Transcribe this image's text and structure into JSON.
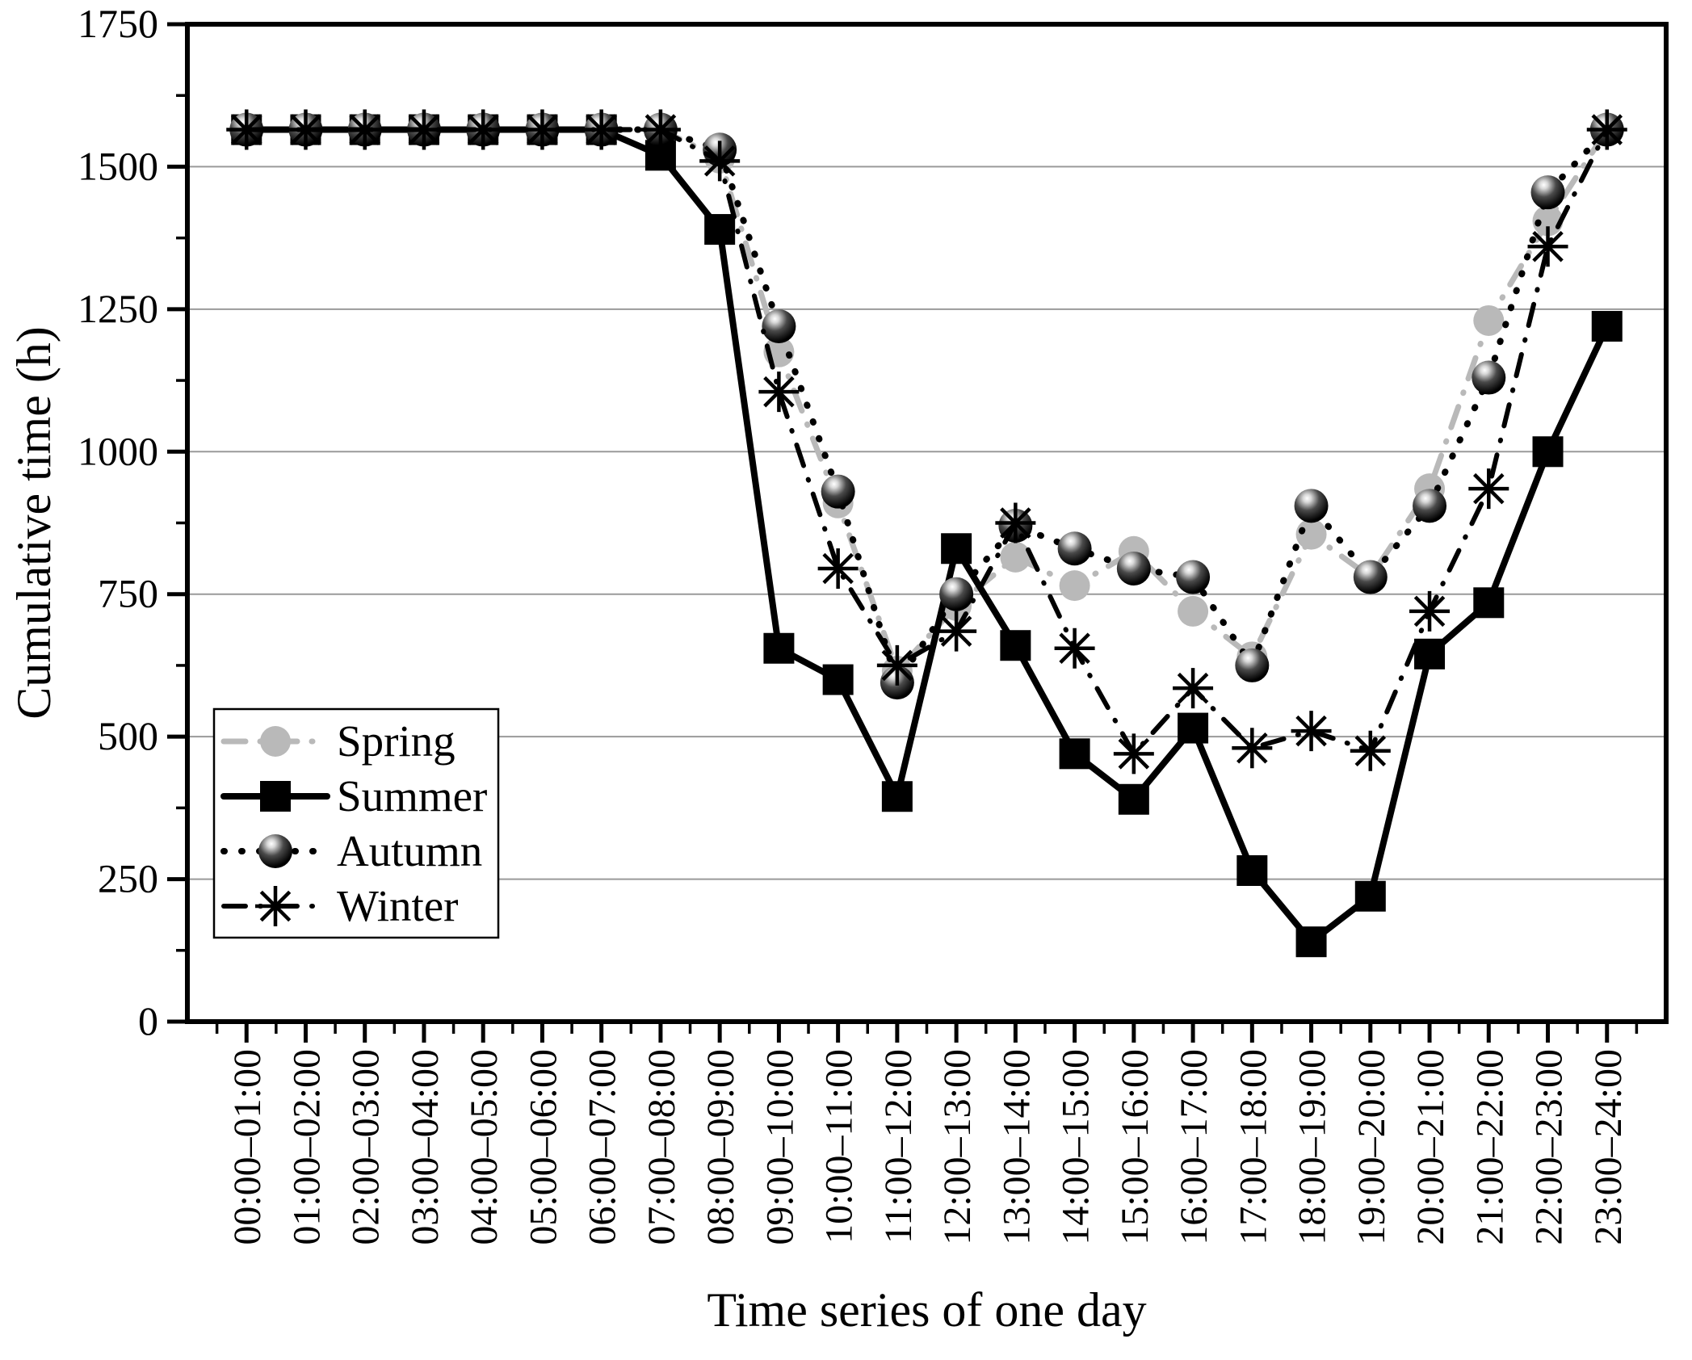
{
  "page": {
    "background": "#ffffff"
  },
  "chart_data": {
    "type": "line",
    "title": "",
    "xlabel": "Time series of one day",
    "ylabel": "Cumulative time (h)",
    "ylim": [
      0,
      1750
    ],
    "y_major_ticks": [
      0,
      250,
      500,
      750,
      1000,
      1250,
      1500,
      1750
    ],
    "y_minor_step": 125,
    "grid": "horizontal-major-gray",
    "legend_position": "inside-lower-left",
    "frame": "full-box",
    "colors": {
      "spring_gray": "#b9b9b9",
      "black": "#000000",
      "gridline": "#9a9a9a"
    },
    "categories": [
      "00:00–01:00",
      "01:00–02:00",
      "02:00–03:00",
      "03:00–04:00",
      "04:00–05:00",
      "05:00–06:00",
      "06:00–07:00",
      "07:00–08:00",
      "08:00–09:00",
      "09:00–10:00",
      "10:00–11:00",
      "11:00–12:00",
      "12:00–13:00",
      "13:00–14:00",
      "14:00–15:00",
      "15:00–16:00",
      "16:00–17:00",
      "17:00–18:00",
      "18:00–19:00",
      "19:00–20:00",
      "20:00–21:00",
      "21:00–22:00",
      "22:00–23:00",
      "23:00–24:00"
    ],
    "series": [
      {
        "name": "Spring",
        "marker": "circle",
        "line_style": "dash-dot",
        "color": "#b9b9b9",
        "values": [
          1565,
          1565,
          1565,
          1565,
          1565,
          1565,
          1565,
          1565,
          1515,
          1175,
          910,
          615,
          730,
          815,
          765,
          825,
          720,
          640,
          855,
          780,
          935,
          1230,
          1405,
          1565
        ]
      },
      {
        "name": "Summer",
        "marker": "square",
        "line_style": "solid",
        "color": "#000000",
        "values": [
          1565,
          1565,
          1565,
          1565,
          1565,
          1565,
          1565,
          1520,
          1390,
          655,
          600,
          395,
          830,
          660,
          470,
          390,
          515,
          265,
          140,
          220,
          645,
          735,
          1000,
          1220
        ]
      },
      {
        "name": "Autumn",
        "marker": "sphere",
        "line_style": "dotted",
        "color": "#000000",
        "values": [
          1565,
          1565,
          1565,
          1565,
          1565,
          1565,
          1565,
          1565,
          1530,
          1220,
          930,
          595,
          750,
          870,
          830,
          795,
          780,
          625,
          905,
          780,
          905,
          1130,
          1455,
          1565
        ]
      },
      {
        "name": "Winter",
        "marker": "asterisk",
        "line_style": "dash-dot",
        "color": "#000000",
        "values": [
          1565,
          1565,
          1565,
          1565,
          1565,
          1565,
          1565,
          1565,
          1510,
          1105,
          795,
          625,
          685,
          875,
          655,
          470,
          585,
          480,
          510,
          475,
          720,
          935,
          1360,
          1565
        ]
      }
    ]
  }
}
